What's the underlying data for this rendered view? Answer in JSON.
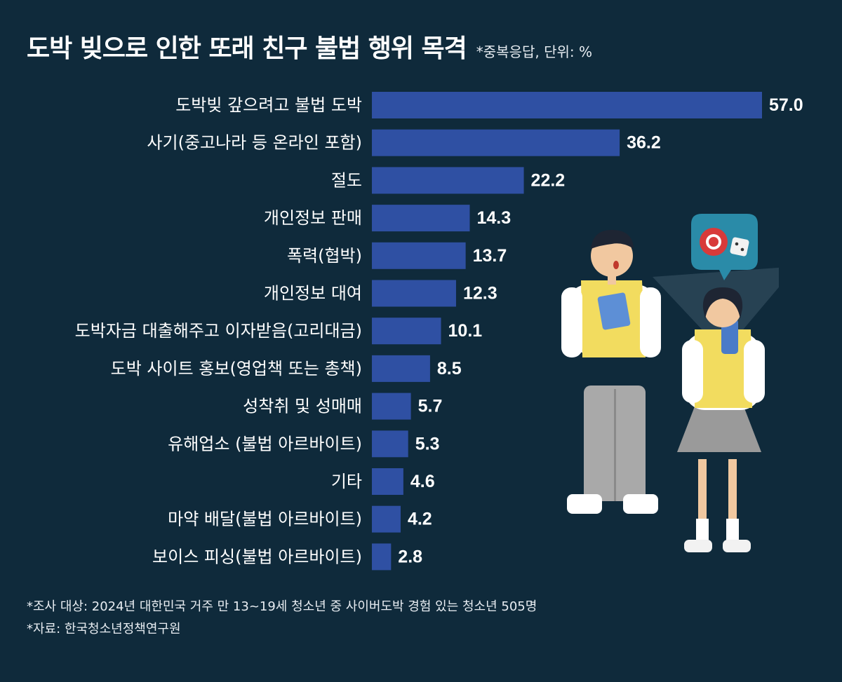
{
  "title": "도박 빚으로 인한 또래 친구 불법 행위 목격",
  "subtitle": "*중복응답, 단위: %",
  "chart_data": {
    "type": "bar",
    "orientation": "horizontal",
    "categories": [
      "도박빚 갚으려고 불법 도박",
      "사기(중고나라 등 온라인 포함)",
      "절도",
      "개인정보 판매",
      "폭력(협박)",
      "개인정보 대여",
      "도박자금 대출해주고 이자받음(고리대금)",
      "도박 사이트 홍보(영업책 또는 총책)",
      "성착취 및 성매매",
      "유해업소 (불법 아르바이트)",
      "기타",
      "마약 배달(불법 아르바이트)",
      "보이스 피싱(불법 아르바이트)"
    ],
    "values": [
      57.0,
      36.2,
      22.2,
      14.3,
      13.7,
      12.3,
      10.1,
      8.5,
      5.7,
      5.3,
      4.6,
      4.2,
      2.8
    ],
    "value_labels": [
      "57.0",
      "36.2",
      "22.2",
      "14.3",
      "13.7",
      "12.3",
      "10.1",
      "8.5",
      "5.7",
      "5.3",
      "4.6",
      "4.2",
      "2.8"
    ],
    "xlim": [
      0,
      57.0
    ],
    "grid": false,
    "bar_color": "#2f50a3"
  },
  "footnotes": {
    "survey": "*조사 대상: 2024년 대한민국 거주 만 13~19세 청소년 중 사이버도박 경험 있는 청소년 505명",
    "source": "*자료: 한국청소년정책연구원"
  },
  "colors": {
    "background": "#0f2a3b",
    "bar": "#2f50a3",
    "text": "#ffffff"
  },
  "illustration": {
    "icon": "students-gambling-icon"
  }
}
